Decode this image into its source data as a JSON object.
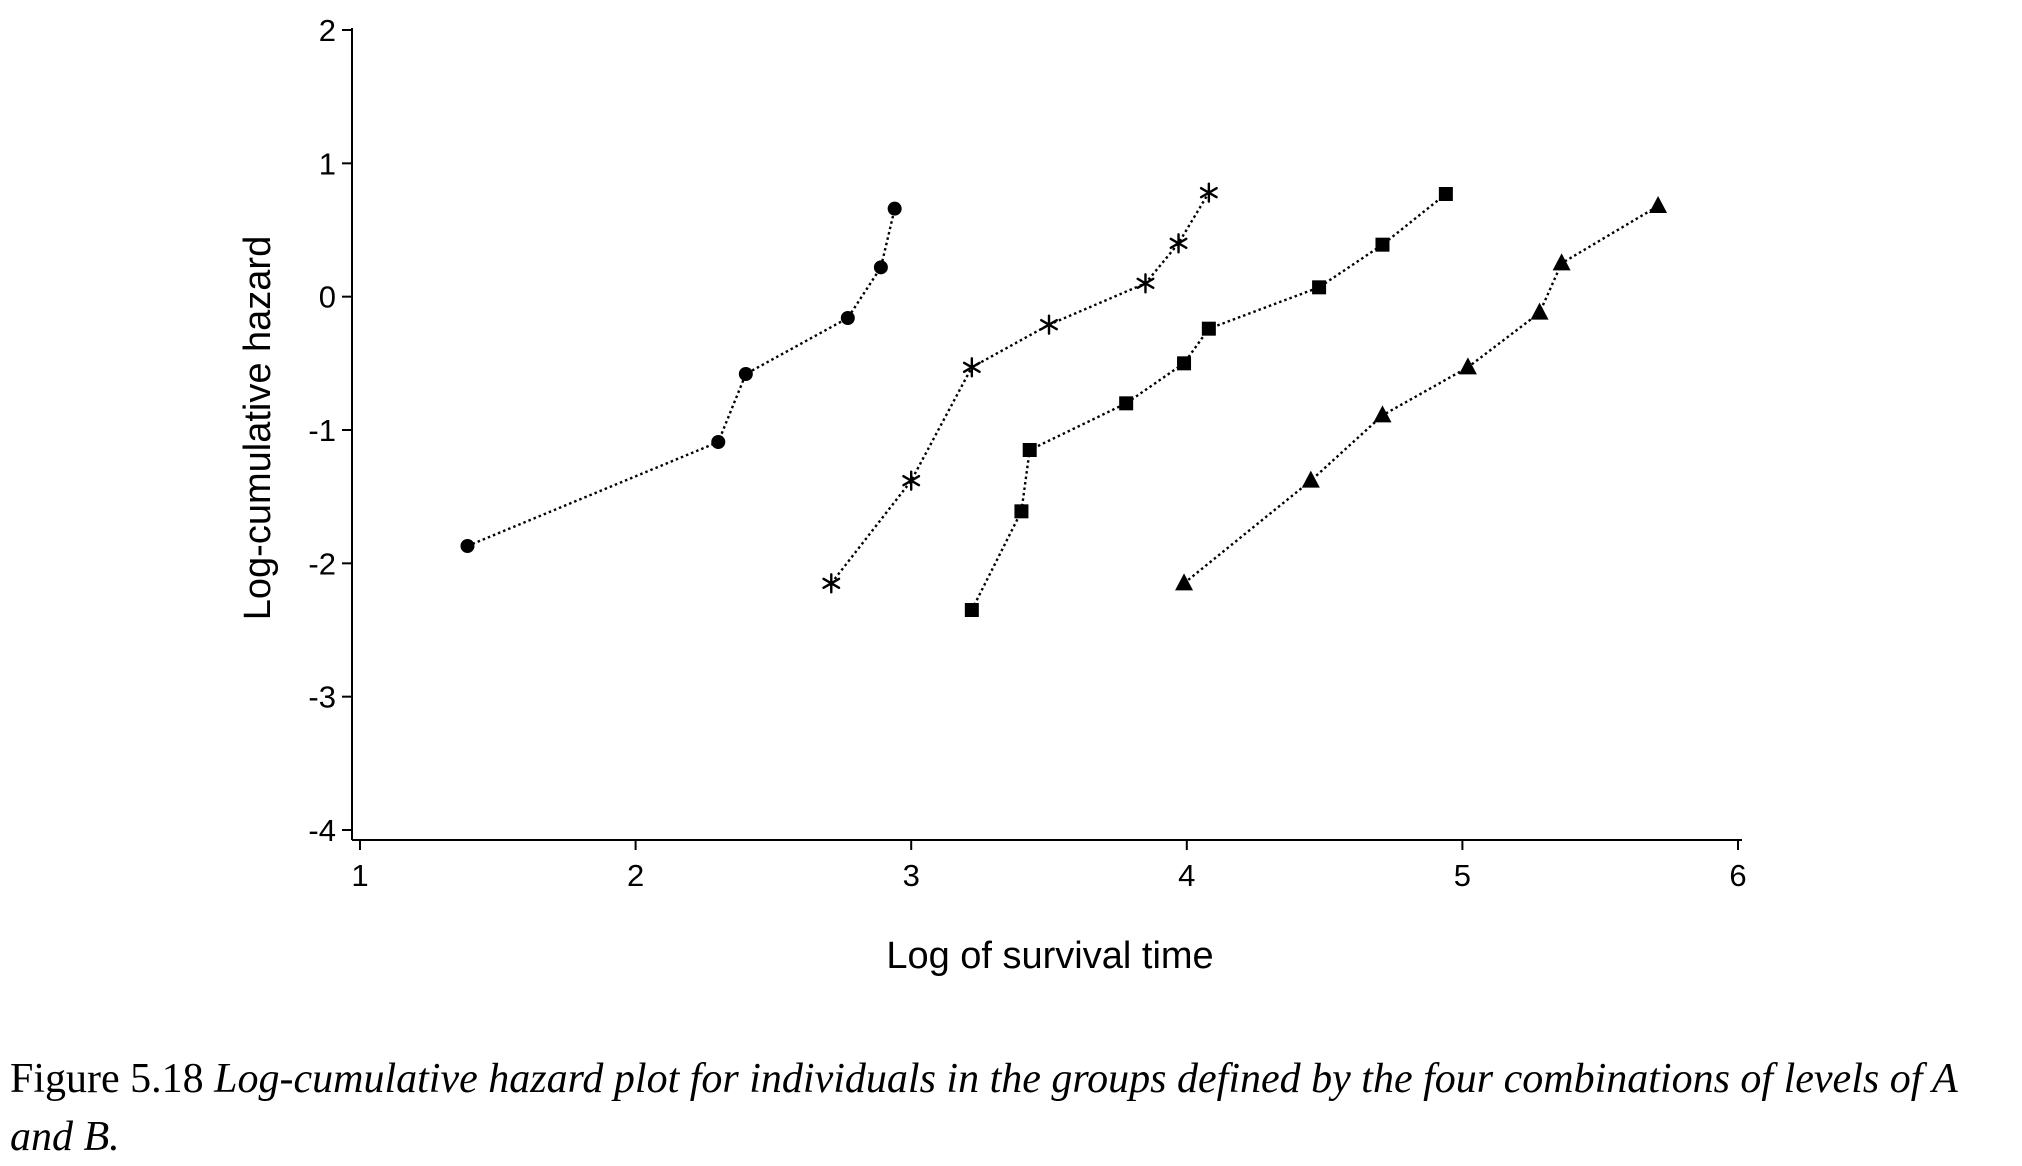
{
  "chart_data": {
    "type": "line",
    "title": "",
    "xlabel": "Log of survival time",
    "ylabel": "Log-cumulative hazard",
    "xlim": [
      1,
      6
    ],
    "ylim": [
      -4,
      2
    ],
    "x_ticks": [
      1,
      2,
      3,
      4,
      5,
      6
    ],
    "y_ticks": [
      2,
      1,
      0,
      -1,
      -2,
      -3,
      -4
    ],
    "line_style": "dotted",
    "grid": false,
    "legend": "none",
    "series": [
      {
        "marker": "circle",
        "x": [
          1.39,
          2.3,
          2.4,
          2.77,
          2.89,
          2.94
        ],
        "y": [
          -1.87,
          -1.09,
          -0.58,
          -0.16,
          0.22,
          0.66
        ]
      },
      {
        "marker": "asterisk",
        "x": [
          2.71,
          3.0,
          3.22,
          3.5,
          3.85,
          3.97,
          4.08
        ],
        "y": [
          -2.15,
          -1.38,
          -0.53,
          -0.21,
          0.1,
          0.4,
          0.78
        ]
      },
      {
        "marker": "square",
        "x": [
          3.22,
          3.4,
          3.43,
          3.78,
          3.99,
          4.08,
          4.48,
          4.71,
          4.94
        ],
        "y": [
          -2.35,
          -1.61,
          -1.15,
          -0.8,
          -0.5,
          -0.24,
          0.07,
          0.39,
          0.77
        ]
      },
      {
        "marker": "triangle",
        "x": [
          3.99,
          4.45,
          4.71,
          5.02,
          5.28,
          5.36,
          5.71
        ],
        "y": [
          -2.15,
          -1.38,
          -0.89,
          -0.53,
          -0.12,
          0.25,
          0.68
        ]
      }
    ]
  },
  "caption": {
    "number": "Figure 5.18",
    "text": "Log-cumulative hazard plot for individuals in the groups defined by the four combinations of levels of A and B."
  }
}
